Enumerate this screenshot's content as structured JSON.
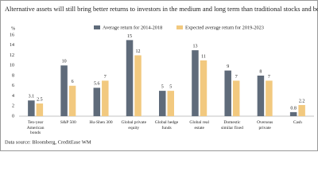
{
  "chart_data": {
    "type": "bar",
    "title": "Alternative assets will still bring better returns to investors in the medium and long term than traditional stocks and bonds",
    "y_label": "%",
    "categories": [
      "Ten-year American bonds",
      "S&P 500",
      "Hu-Shen 300",
      "Global private equity",
      "Global hedge funds",
      "Global real estate",
      "Domestic similar fixed",
      "Overseas private",
      "Cash"
    ],
    "series": [
      {
        "name": "Average return for 2014-2018",
        "color": "#5f6b7a",
        "values": [
          3.1,
          10,
          5.6,
          15,
          5,
          13,
          9,
          8,
          0.8
        ]
      },
      {
        "name": "Expected average return for 2019-2023",
        "color": "#f2c97f",
        "values": [
          2.5,
          6,
          7,
          12,
          5,
          11,
          7,
          7,
          2.2
        ]
      }
    ],
    "ylim": [
      0,
      16
    ],
    "yticks": [
      0,
      2,
      4,
      6,
      8,
      10,
      12,
      14,
      16
    ],
    "grid": false,
    "source": "Data source: Bloomberg, CreditEase WM"
  }
}
